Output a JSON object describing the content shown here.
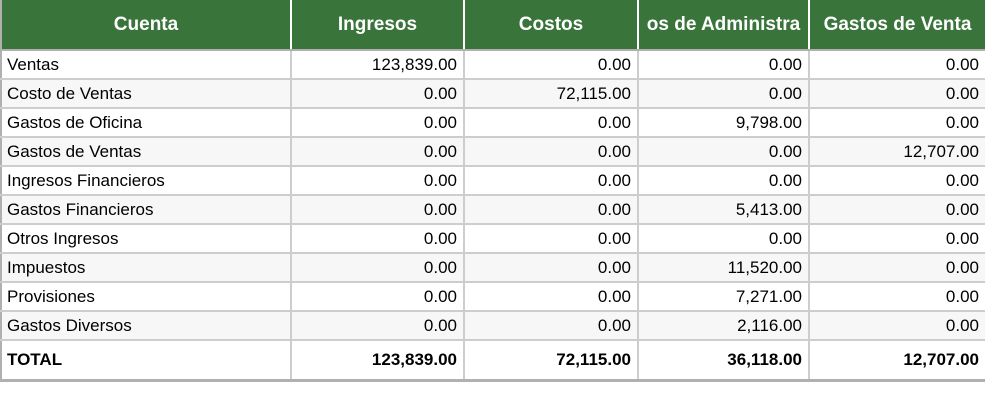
{
  "table": {
    "columns": [
      {
        "label": "Cuenta"
      },
      {
        "label": "Ingresos"
      },
      {
        "label": "Costos"
      },
      {
        "label": "os de Administra"
      },
      {
        "label": "Gastos de Venta"
      }
    ],
    "rows": [
      {
        "account": "Ventas",
        "values": [
          "123,839.00",
          "0.00",
          "0.00",
          "0.00"
        ]
      },
      {
        "account": "Costo de Ventas",
        "values": [
          "0.00",
          "72,115.00",
          "0.00",
          "0.00"
        ]
      },
      {
        "account": "Gastos de Oficina",
        "values": [
          "0.00",
          "0.00",
          "9,798.00",
          "0.00"
        ]
      },
      {
        "account": "Gastos de Ventas",
        "values": [
          "0.00",
          "0.00",
          "0.00",
          "12,707.00"
        ]
      },
      {
        "account": "Ingresos Financieros",
        "values": [
          "0.00",
          "0.00",
          "0.00",
          "0.00"
        ]
      },
      {
        "account": "Gastos Financieros",
        "values": [
          "0.00",
          "0.00",
          "5,413.00",
          "0.00"
        ]
      },
      {
        "account": "Otros Ingresos",
        "values": [
          "0.00",
          "0.00",
          "0.00",
          "0.00"
        ]
      },
      {
        "account": "Impuestos",
        "values": [
          "0.00",
          "0.00",
          "11,520.00",
          "0.00"
        ]
      },
      {
        "account": "Provisiones",
        "values": [
          "0.00",
          "0.00",
          "7,271.00",
          "0.00"
        ]
      },
      {
        "account": "Gastos Diversos",
        "values": [
          "0.00",
          "0.00",
          "2,116.00",
          "0.00"
        ]
      }
    ],
    "total": {
      "account": "TOTAL",
      "values": [
        "123,839.00",
        "72,115.00",
        "36,118.00",
        "12,707.00"
      ]
    }
  },
  "colors": {
    "header_bg": "#39743B",
    "header_text": "#FFFFFF",
    "header_separator": "#FFFFFF",
    "grid_line": "#CDCDCD",
    "outer_border": "#B0B0B0",
    "alt_row_bg": "#F7F7F7",
    "cell_text": "#000000"
  }
}
